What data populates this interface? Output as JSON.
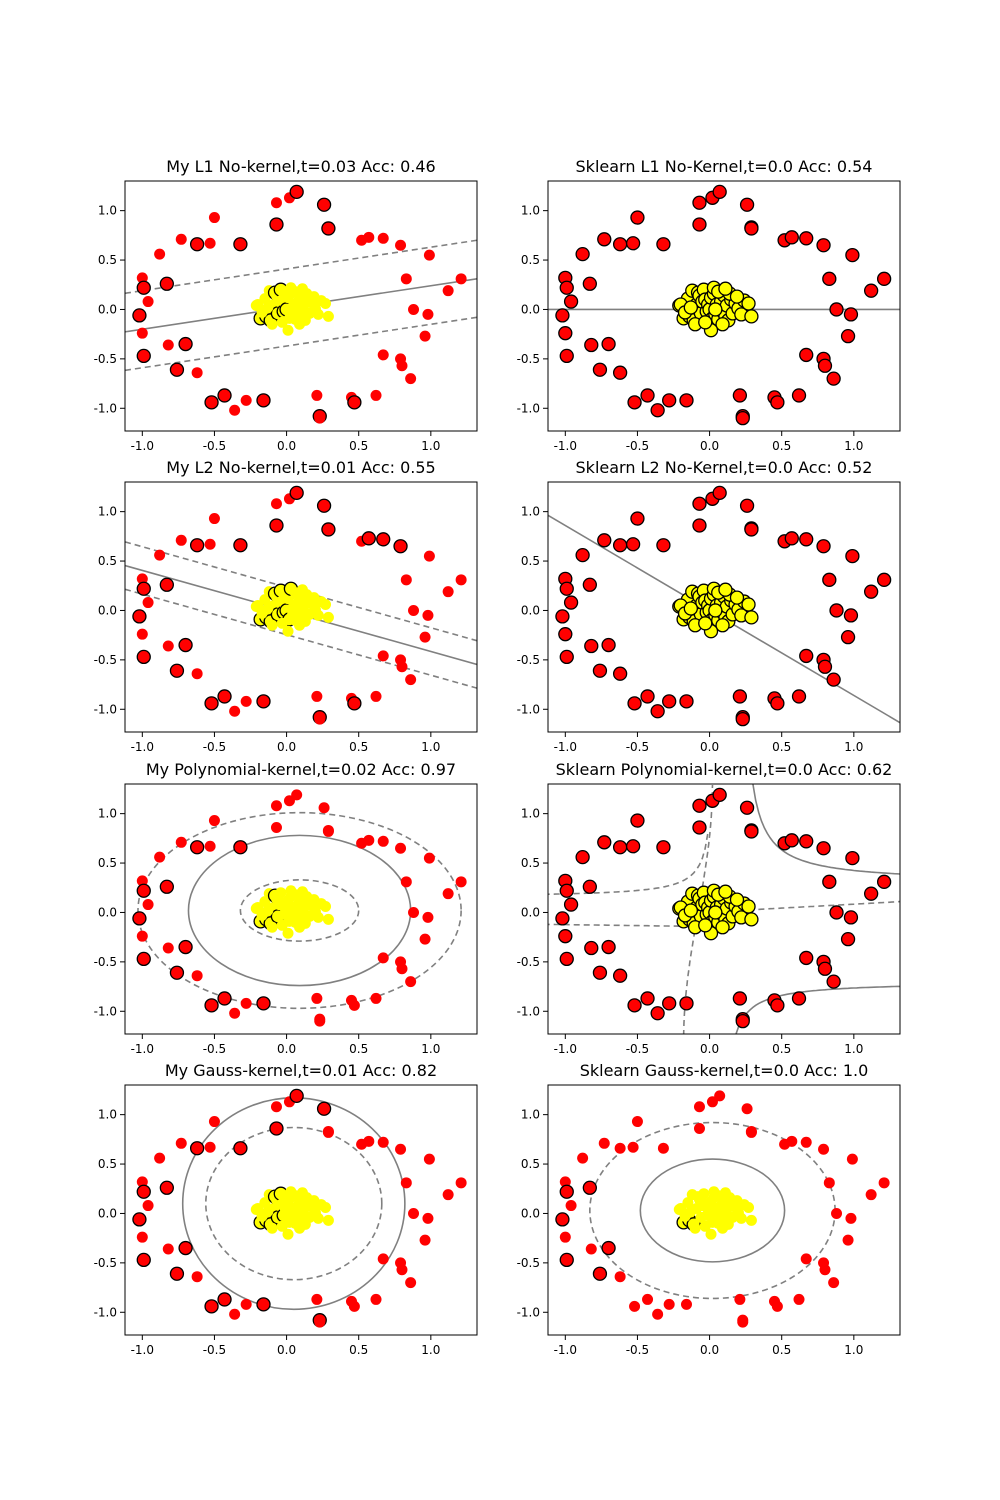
{
  "chart_data": [
    {
      "type": "scatter",
      "title": "My L1 No-kernel,t=0.03 Acc: 0.46",
      "xlim": [
        -1.12,
        1.32
      ],
      "ylim": [
        -1.23,
        1.3
      ],
      "xticks": [
        "-1.0",
        "-0.5",
        "0.0",
        "0.5",
        "1.0"
      ],
      "yticks": [
        "-1.0",
        "-0.5",
        "0.0",
        "0.5",
        "1.0"
      ],
      "decision_boundary": "linear",
      "boundary_slope": 0.22,
      "boundary_intercept": 0.02,
      "margin_offset": 0.39,
      "support_vector_count": 34
    },
    {
      "type": "scatter",
      "title": "Sklearn L1 No-Kernel,t=0.0 Acc: 0.54",
      "xlim": [
        -1.12,
        1.32
      ],
      "ylim": [
        -1.23,
        1.3
      ],
      "xticks": [
        "-1.0",
        "-0.5",
        "0.0",
        "0.5",
        "1.0"
      ],
      "yticks": [
        "-1.0",
        "-0.5",
        "0.0",
        "0.5",
        "1.0"
      ],
      "decision_boundary": "linear",
      "boundary_slope": 0.0,
      "boundary_intercept": 0.0,
      "support_vector_count": 100
    },
    {
      "type": "scatter",
      "title": "My L2 No-kernel,t=0.01 Acc: 0.55",
      "xlim": [
        -1.12,
        1.32
      ],
      "ylim": [
        -1.23,
        1.3
      ],
      "xticks": [
        "-1.0",
        "-0.5",
        "0.0",
        "0.5",
        "1.0"
      ],
      "yticks": [
        "-1.0",
        "-0.5",
        "0.0",
        "0.5",
        "1.0"
      ],
      "decision_boundary": "linear",
      "boundary_slope": -0.41,
      "boundary_intercept": -0.005,
      "margin_offset": 0.24,
      "support_vector_count": 40
    },
    {
      "type": "scatter",
      "title": "Sklearn L2 No-Kernel,t=0.0 Acc: 0.52",
      "xlim": [
        -1.12,
        1.32
      ],
      "ylim": [
        -1.23,
        1.3
      ],
      "xticks": [
        "-1.0",
        "-0.5",
        "0.0",
        "0.5",
        "1.0"
      ],
      "yticks": [
        "-1.0",
        "-0.5",
        "0.0",
        "0.5",
        "1.0"
      ],
      "decision_boundary": "linear",
      "boundary_slope": -0.86,
      "boundary_intercept": 0.0,
      "support_vector_count": 100
    },
    {
      "type": "scatter",
      "title": "My Polynomial-kernel,t=0.02 Acc: 0.97",
      "xlim": [
        -1.12,
        1.32
      ],
      "ylim": [
        -1.23,
        1.3
      ],
      "xticks": [
        "-1.0",
        "-0.5",
        "0.0",
        "0.5",
        "1.0"
      ],
      "yticks": [
        "-1.0",
        "-0.5",
        "0.0",
        "0.5",
        "1.0"
      ],
      "decision_boundary": "ellipse",
      "boundary_center": [
        0.09,
        0.02
      ],
      "boundary_radii": [
        0.77,
        0.76
      ],
      "margin_inner_radii": [
        0.41,
        0.31
      ],
      "margin_outer_radii": [
        1.12,
        0.99
      ],
      "support_vector_count": 22
    },
    {
      "type": "scatter",
      "title": "Sklearn Polynomial-kernel,t=0.0 Acc: 0.62",
      "xlim": [
        -1.12,
        1.32
      ],
      "ylim": [
        -1.23,
        1.3
      ],
      "xticks": [
        "-1.0",
        "-0.5",
        "0.0",
        "0.5",
        "1.0"
      ],
      "yticks": [
        "-1.0",
        "-0.5",
        "0.0",
        "0.5",
        "1.0"
      ],
      "decision_boundary": "hyperbola",
      "support_vector_count": 100
    },
    {
      "type": "scatter",
      "title": "My Gauss-kernel,t=0.01 Acc: 0.82",
      "xlim": [
        -1.12,
        1.32
      ],
      "ylim": [
        -1.23,
        1.3
      ],
      "xticks": [
        "-1.0",
        "-0.5",
        "0.0",
        "0.5",
        "1.0"
      ],
      "yticks": [
        "-1.0",
        "-0.5",
        "0.0",
        "0.5",
        "1.0"
      ],
      "decision_boundary": "ellipse",
      "boundary_center": [
        0.05,
        0.1
      ],
      "boundary_radii": [
        0.77,
        1.07
      ],
      "margin_inner_radii": [
        0.61,
        0.77
      ],
      "support_vector_count": 30
    },
    {
      "type": "scatter",
      "title": "Sklearn Gauss-kernel,t=0.0 Acc: 1.0",
      "xlim": [
        -1.12,
        1.32
      ],
      "ylim": [
        -1.23,
        1.3
      ],
      "xticks": [
        "-1.0",
        "-0.5",
        "0.0",
        "0.5",
        "1.0"
      ],
      "yticks": [
        "-1.0",
        "-0.5",
        "0.0",
        "0.5",
        "1.0"
      ],
      "decision_boundary": "ellipse",
      "boundary_center": [
        0.02,
        0.03
      ],
      "boundary_radii": [
        0.5,
        0.52
      ],
      "margin_outer_radii": [
        0.85,
        0.89
      ],
      "support_vector_count": 13
    }
  ],
  "dataset": {
    "outer_ring_color": "#ff0000",
    "inner_cluster_color": "#ffff00",
    "boundary_color": "#808080",
    "outer_ring": [
      [
        -1.0,
        0.32
      ],
      [
        -0.99,
        0.22
      ],
      [
        -0.96,
        0.08
      ],
      [
        -1.02,
        -0.06
      ],
      [
        -1.0,
        -0.24
      ],
      [
        -0.99,
        -0.47
      ],
      [
        -0.88,
        0.56
      ],
      [
        -0.83,
        0.26
      ],
      [
        -0.82,
        -0.36
      ],
      [
        -0.76,
        -0.61
      ],
      [
        -0.73,
        0.71
      ],
      [
        -0.7,
        -0.35
      ],
      [
        -0.62,
        -0.64
      ],
      [
        -0.62,
        0.66
      ],
      [
        -0.53,
        0.67
      ],
      [
        -0.52,
        -0.94
      ],
      [
        -0.5,
        0.93
      ],
      [
        -0.43,
        -0.87
      ],
      [
        -0.36,
        -1.02
      ],
      [
        -0.32,
        0.66
      ],
      [
        -0.28,
        -0.92
      ],
      [
        -0.16,
        -0.92
      ],
      [
        -0.07,
        1.08
      ],
      [
        -0.07,
        0.86
      ],
      [
        0.02,
        1.13
      ],
      [
        0.07,
        1.19
      ],
      [
        0.21,
        -0.87
      ],
      [
        0.23,
        -1.08
      ],
      [
        0.23,
        -1.1
      ],
      [
        0.26,
        1.06
      ],
      [
        0.29,
        0.83
      ],
      [
        0.29,
        0.82
      ],
      [
        0.45,
        -0.89
      ],
      [
        0.47,
        -0.94
      ],
      [
        0.52,
        0.7
      ],
      [
        0.57,
        0.73
      ],
      [
        0.62,
        -0.87
      ],
      [
        0.67,
        0.72
      ],
      [
        0.67,
        -0.46
      ],
      [
        0.79,
        0.65
      ],
      [
        0.79,
        -0.5
      ],
      [
        0.8,
        -0.57
      ],
      [
        0.83,
        0.31
      ],
      [
        0.86,
        -0.7
      ],
      [
        0.88,
        0.0
      ],
      [
        0.96,
        -0.27
      ],
      [
        0.98,
        -0.05
      ],
      [
        0.99,
        0.55
      ],
      [
        1.12,
        0.19
      ],
      [
        1.21,
        0.31
      ]
    ],
    "inner_cluster": [
      [
        -0.21,
        0.04
      ],
      [
        -0.18,
        -0.09
      ],
      [
        -0.15,
        0.11
      ],
      [
        -0.14,
        -0.07
      ],
      [
        -0.12,
        0.19
      ],
      [
        -0.11,
        -0.11
      ],
      [
        -0.09,
        0.05
      ],
      [
        -0.08,
        0.17
      ],
      [
        -0.07,
        0.14
      ],
      [
        -0.06,
        -0.04
      ],
      [
        -0.05,
        0.08
      ],
      [
        -0.04,
        0.2
      ],
      [
        -0.03,
        0.1
      ],
      [
        -0.02,
        -0.02
      ],
      [
        -0.01,
        0.05
      ],
      [
        0.0,
        0.0
      ],
      [
        0.01,
        0.12
      ],
      [
        0.02,
        -0.09
      ],
      [
        0.03,
        0.16
      ],
      [
        0.03,
        0.22
      ],
      [
        0.04,
        -0.05
      ],
      [
        0.05,
        0.05
      ],
      [
        0.06,
        -0.1
      ],
      [
        0.07,
        0.01
      ],
      [
        0.08,
        0.08
      ],
      [
        0.09,
        -0.02
      ],
      [
        0.1,
        0.14
      ],
      [
        0.11,
        -0.07
      ],
      [
        0.12,
        0.04
      ],
      [
        0.13,
        -0.11
      ],
      [
        0.15,
        0.1
      ],
      [
        0.16,
        -0.04
      ],
      [
        0.18,
        0.06
      ],
      [
        0.2,
        0.01
      ],
      [
        0.22,
        -0.05
      ],
      [
        0.24,
        0.09
      ],
      [
        -0.2,
        0.05
      ],
      [
        -0.17,
        -0.03
      ],
      [
        0.04,
        0.0
      ],
      [
        0.06,
        0.18
      ],
      [
        0.09,
        -0.15
      ],
      [
        0.14,
        0.16
      ],
      [
        -0.1,
        -0.15
      ],
      [
        0.01,
        -0.21
      ],
      [
        0.27,
        0.06
      ],
      [
        0.29,
        -0.07
      ],
      [
        0.19,
        0.13
      ],
      [
        -0.03,
        -0.13
      ],
      [
        0.11,
        0.21
      ],
      [
        -0.13,
        0.02
      ]
    ]
  }
}
